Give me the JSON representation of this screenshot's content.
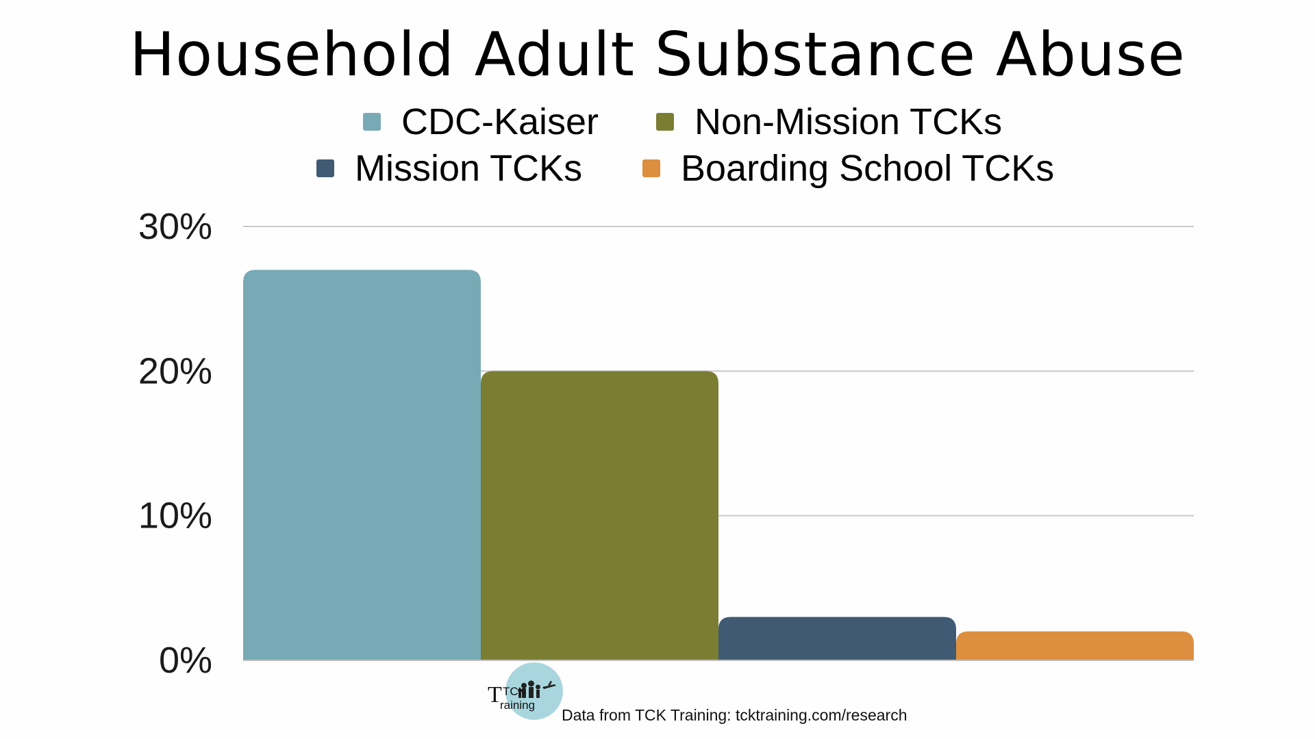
{
  "chart_data": {
    "type": "bar",
    "title": "Household Adult Substance Abuse",
    "categories": [
      "Household Adult Substance Abuse"
    ],
    "series": [
      {
        "name": "CDC-Kaiser",
        "values": [
          27
        ],
        "color": "#78aab5"
      },
      {
        "name": "Non-Mission TCKs",
        "values": [
          20
        ],
        "color": "#7b7d32"
      },
      {
        "name": "Mission TCKs",
        "values": [
          3
        ],
        "color": "#405a74"
      },
      {
        "name": "Boarding School TCKs",
        "values": [
          2
        ],
        "color": "#dc8f3f"
      }
    ],
    "ylim": [
      0,
      30
    ],
    "yticks": [
      "0%",
      "10%",
      "20%",
      "30%"
    ],
    "ytick_values": [
      0,
      10,
      20,
      30
    ],
    "xlabel": "",
    "ylabel": "",
    "grid": true,
    "legend": "top-center"
  },
  "footer": {
    "source": "Data from TCK Training: tcktraining.com/research",
    "logo_text_top": "TCK",
    "logo_text_bottom": "raining"
  }
}
